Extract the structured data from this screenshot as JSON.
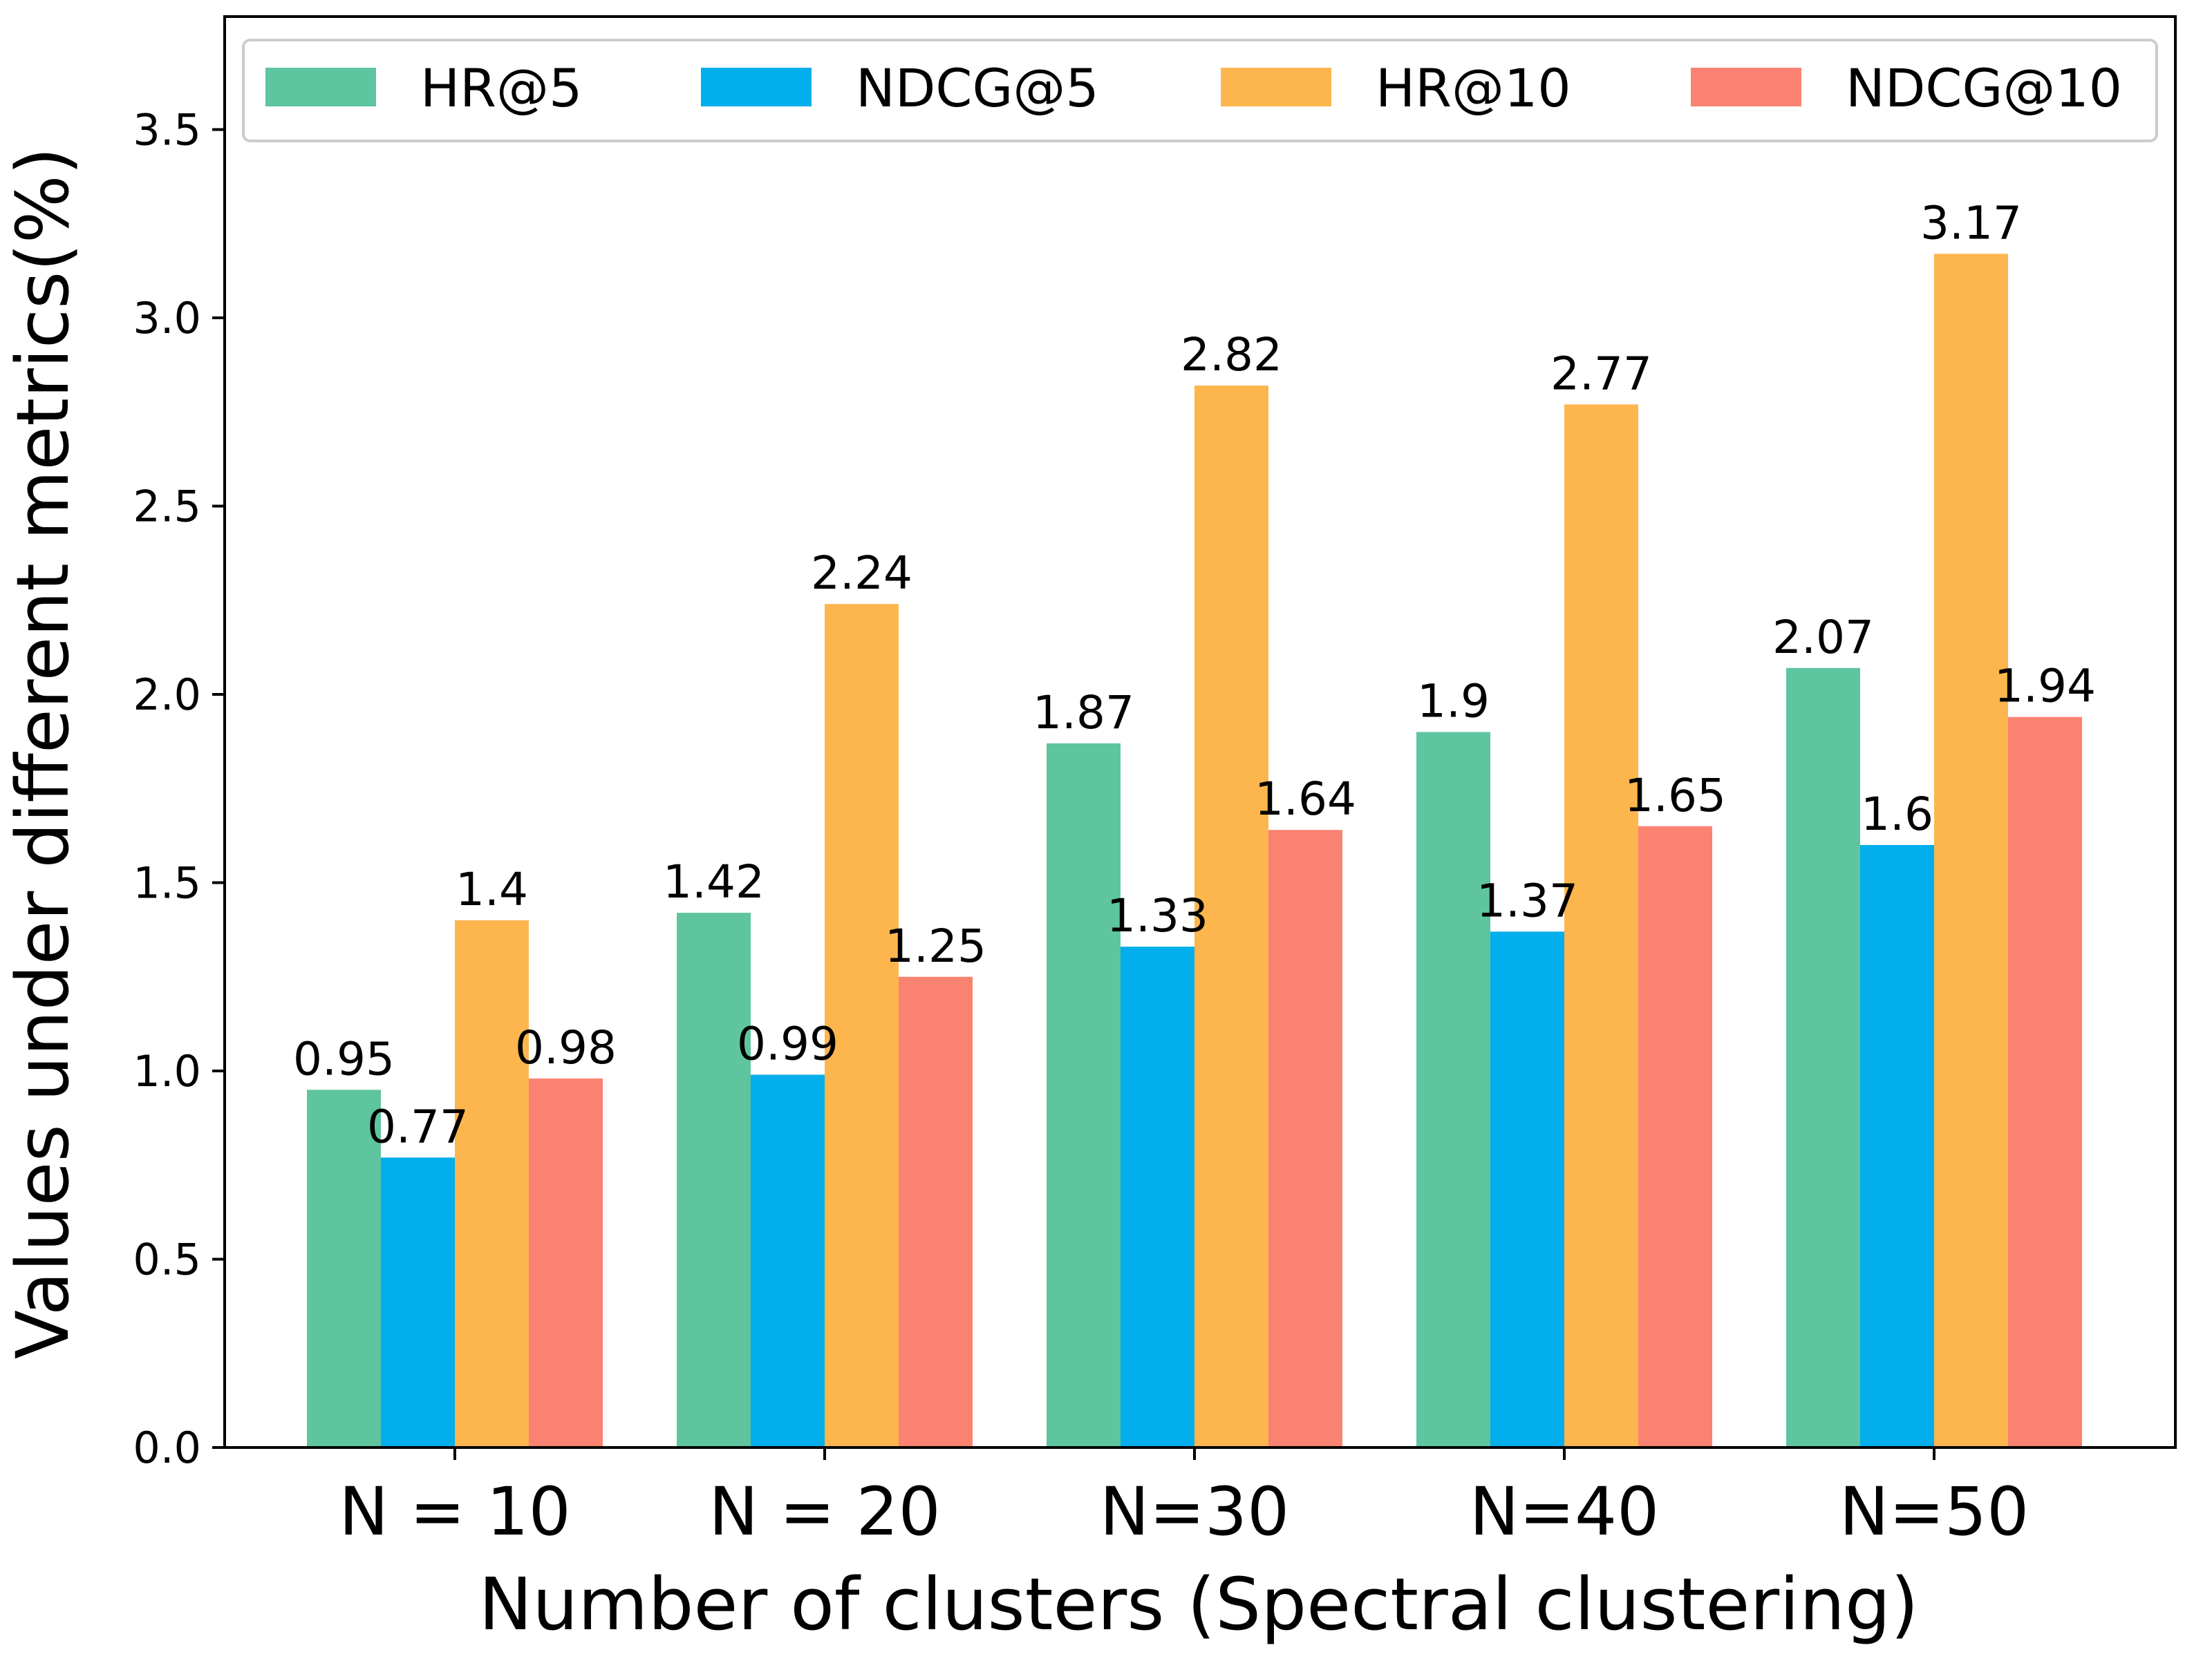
{
  "chart_data": {
    "type": "bar",
    "title": "",
    "xlabel": "Number of clusters (Spectral clustering)",
    "ylabel": "Values under different metrics(%)",
    "categories": [
      "N = 10",
      "N = 20",
      "N=30",
      "N=40",
      "N=50"
    ],
    "series": [
      {
        "name": "HR@5",
        "color": "#5ec59f",
        "values": [
          0.95,
          1.42,
          1.87,
          1.9,
          2.07
        ],
        "labels": [
          "0.95",
          "1.42",
          "1.87",
          "1.9",
          "2.07"
        ]
      },
      {
        "name": "NDCG@5",
        "color": "#02aeec",
        "values": [
          0.77,
          0.99,
          1.33,
          1.37,
          1.6
        ],
        "labels": [
          "0.77",
          "0.99",
          "1.33",
          "1.37",
          "1.6"
        ]
      },
      {
        "name": "HR@10",
        "color": "#fdb64d",
        "values": [
          1.4,
          2.24,
          2.82,
          2.77,
          3.17
        ],
        "labels": [
          "1.4",
          "2.24",
          "2.82",
          "2.77",
          "3.17"
        ]
      },
      {
        "name": "NDCG@10",
        "color": "#fa8270",
        "values": [
          0.98,
          1.25,
          1.64,
          1.65,
          1.94
        ],
        "labels": [
          "0.98",
          "1.25",
          "1.64",
          "1.65",
          "1.94"
        ]
      }
    ],
    "ylim": [
      0,
      3.8
    ],
    "yticks": [
      "0.0",
      "0.5",
      "1.0",
      "1.5",
      "2.0",
      "2.5",
      "3.0",
      "3.5"
    ],
    "legend": "top, single row",
    "grid": false
  }
}
